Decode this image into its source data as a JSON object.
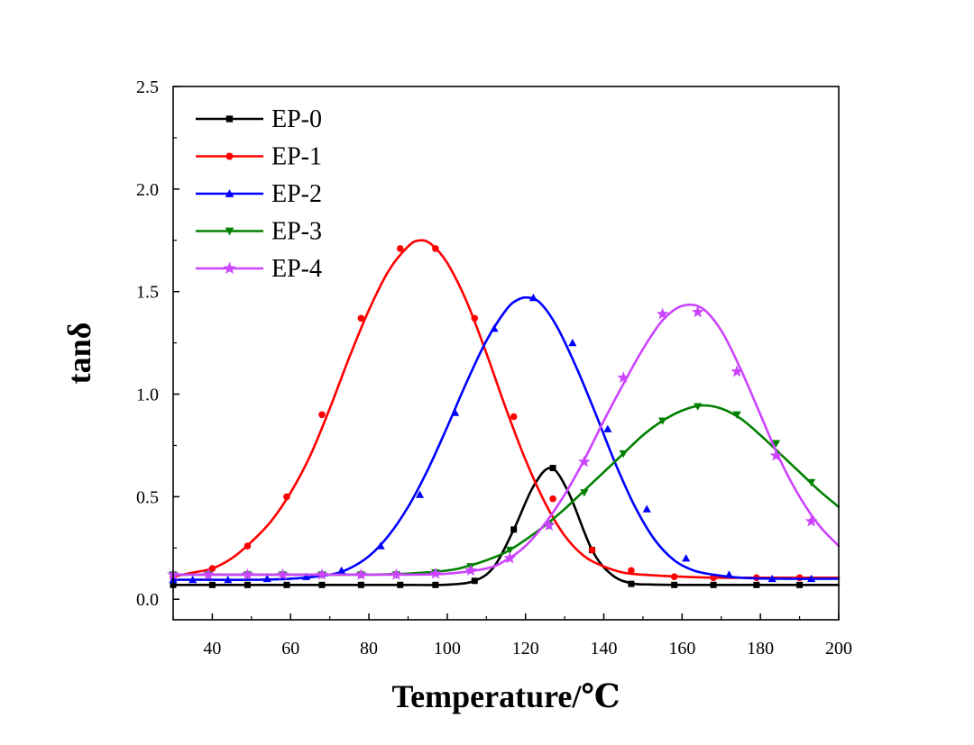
{
  "chart_data": {
    "type": "line",
    "title": "",
    "xlabel": "Temperature/℃",
    "ylabel": "tanδ",
    "xlim": [
      30,
      200
    ],
    "ylim": [
      -0.1,
      2.5
    ],
    "xticks": [
      40,
      60,
      80,
      100,
      120,
      140,
      160,
      180,
      200
    ],
    "xtick_labels": [
      "40",
      "60",
      "80",
      "100",
      "120",
      "140",
      "160",
      "180",
      "200"
    ],
    "yticks": [
      0.0,
      0.5,
      1.0,
      1.5,
      2.0,
      2.5
    ],
    "ytick_labels": [
      "0.0",
      "0.5",
      "1.0",
      "1.5",
      "2.0",
      "2.5"
    ],
    "grid": false,
    "legend_position": "top-left",
    "series": [
      {
        "name": "EP-0",
        "color": "#000000",
        "marker": "square",
        "x": [
          30,
          40,
          50,
          60,
          70,
          80,
          90,
          100,
          107,
          112,
          117,
          122,
          126.5,
          131,
          137,
          142,
          147,
          152,
          160,
          170,
          180,
          190,
          200
        ],
        "y": [
          0.07,
          0.07,
          0.07,
          0.07,
          0.07,
          0.07,
          0.07,
          0.071,
          0.09,
          0.16,
          0.34,
          0.55,
          0.64,
          0.52,
          0.24,
          0.12,
          0.078,
          0.072,
          0.07,
          0.07,
          0.07,
          0.07,
          0.07
        ],
        "marker_x": [
          30,
          40,
          49,
          59,
          68,
          78,
          88,
          97,
          107,
          117,
          127,
          137,
          147,
          158,
          168,
          179,
          190
        ],
        "marker_y": [
          0.07,
          0.07,
          0.07,
          0.07,
          0.07,
          0.07,
          0.07,
          0.07,
          0.09,
          0.34,
          0.64,
          0.24,
          0.075,
          0.07,
          0.07,
          0.07,
          0.07
        ]
      },
      {
        "name": "EP-1",
        "color": "#ff0000",
        "marker": "circle",
        "x": [
          30,
          35,
          40,
          45,
          50,
          55,
          60,
          65,
          70,
          75,
          80,
          85,
          90,
          93,
          96,
          100,
          105,
          110,
          115,
          120,
          125,
          130,
          135,
          140,
          145,
          150,
          160,
          170,
          180,
          190,
          200
        ],
        "y": [
          0.11,
          0.13,
          0.15,
          0.2,
          0.28,
          0.38,
          0.52,
          0.7,
          0.93,
          1.18,
          1.41,
          1.6,
          1.72,
          1.75,
          1.73,
          1.64,
          1.45,
          1.2,
          0.93,
          0.68,
          0.47,
          0.31,
          0.21,
          0.16,
          0.13,
          0.12,
          0.11,
          0.105,
          0.105,
          0.105,
          0.105
        ],
        "marker_x": [
          30,
          40,
          49,
          59,
          68,
          78,
          88,
          97,
          107,
          117,
          127,
          137,
          147,
          158,
          168,
          179,
          190
        ],
        "marker_y": [
          0.11,
          0.15,
          0.26,
          0.5,
          0.9,
          1.37,
          1.71,
          1.71,
          1.37,
          0.89,
          0.49,
          0.24,
          0.14,
          0.11,
          0.105,
          0.105,
          0.105
        ]
      },
      {
        "name": "EP-2",
        "color": "#0000ff",
        "marker": "triangle-up",
        "x": [
          30,
          40,
          50,
          60,
          70,
          75,
          80,
          85,
          90,
          95,
          100,
          105,
          110,
          115,
          118,
          121,
          124,
          128,
          133,
          138,
          143,
          148,
          153,
          158,
          163,
          168,
          175,
          185,
          200
        ],
        "y": [
          0.095,
          0.095,
          0.095,
          0.1,
          0.12,
          0.15,
          0.21,
          0.31,
          0.45,
          0.63,
          0.84,
          1.06,
          1.26,
          1.41,
          1.46,
          1.47,
          1.44,
          1.33,
          1.13,
          0.9,
          0.66,
          0.45,
          0.29,
          0.19,
          0.14,
          0.12,
          0.105,
          0.1,
          0.1
        ],
        "marker_x": [
          30,
          35,
          44,
          54,
          64,
          73,
          83,
          93,
          102,
          112,
          122,
          132,
          141,
          151,
          161,
          172,
          183,
          193
        ],
        "marker_y": [
          0.095,
          0.095,
          0.095,
          0.1,
          0.11,
          0.14,
          0.26,
          0.51,
          0.91,
          1.32,
          1.47,
          1.25,
          0.83,
          0.44,
          0.2,
          0.12,
          0.1,
          0.1
        ]
      },
      {
        "name": "EP-3",
        "color": "#008000",
        "marker": "triangle-down",
        "x": [
          30,
          40,
          50,
          60,
          70,
          80,
          90,
          100,
          105,
          110,
          115,
          120,
          125,
          130,
          135,
          140,
          145,
          150,
          155,
          160,
          165,
          170,
          175,
          180,
          185,
          190,
          195,
          200
        ],
        "y": [
          0.12,
          0.12,
          0.12,
          0.12,
          0.12,
          0.12,
          0.125,
          0.14,
          0.16,
          0.19,
          0.23,
          0.29,
          0.36,
          0.44,
          0.53,
          0.62,
          0.71,
          0.8,
          0.87,
          0.92,
          0.945,
          0.93,
          0.88,
          0.8,
          0.71,
          0.62,
          0.53,
          0.45
        ],
        "marker_x": [
          30,
          39,
          49,
          58,
          68,
          78,
          87,
          97,
          106,
          116,
          126,
          135,
          145,
          155,
          164,
          174,
          184,
          193
        ],
        "marker_y": [
          0.12,
          0.12,
          0.12,
          0.12,
          0.12,
          0.12,
          0.12,
          0.13,
          0.16,
          0.24,
          0.36,
          0.52,
          0.71,
          0.87,
          0.94,
          0.9,
          0.76,
          0.57
        ]
      },
      {
        "name": "EP-4",
        "color": "#cc44ff",
        "marker": "star",
        "x": [
          30,
          40,
          50,
          60,
          70,
          80,
          90,
          100,
          110,
          115,
          120,
          125,
          130,
          135,
          140,
          145,
          150,
          155,
          160,
          165,
          170,
          175,
          180,
          185,
          190,
          195,
          200
        ],
        "y": [
          0.12,
          0.12,
          0.12,
          0.12,
          0.12,
          0.12,
          0.12,
          0.125,
          0.15,
          0.19,
          0.26,
          0.37,
          0.51,
          0.68,
          0.87,
          1.05,
          1.22,
          1.36,
          1.43,
          1.42,
          1.31,
          1.12,
          0.9,
          0.68,
          0.5,
          0.36,
          0.26
        ],
        "marker_x": [
          30,
          39,
          49,
          58,
          68,
          78,
          87,
          97,
          106,
          116,
          126,
          135,
          145,
          155,
          164,
          174,
          184,
          193
        ],
        "marker_y": [
          0.12,
          0.12,
          0.12,
          0.12,
          0.12,
          0.12,
          0.12,
          0.125,
          0.14,
          0.2,
          0.36,
          0.67,
          1.08,
          1.39,
          1.4,
          1.11,
          0.7,
          0.38
        ]
      }
    ]
  }
}
